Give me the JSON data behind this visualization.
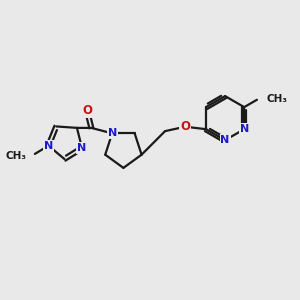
{
  "background_color": "#e9e9e9",
  "bond_color": "#1a1a1a",
  "nitrogen_color": "#1a1acc",
  "oxygen_color": "#cc1111",
  "carbon_color": "#1a1a1a",
  "line_width": 1.6,
  "figsize": [
    3.0,
    3.0
  ],
  "dpi": 100,
  "xlim": [
    0,
    12
  ],
  "ylim": [
    0,
    12
  ]
}
